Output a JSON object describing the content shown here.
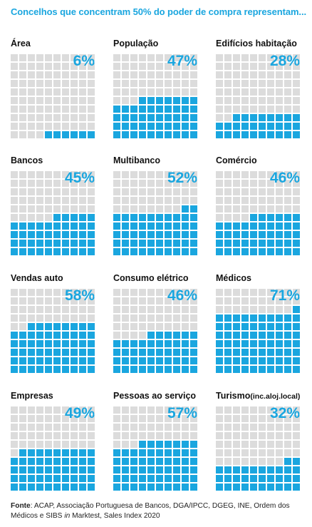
{
  "title": "Concelhos que concentram 50% do poder de compra representam...",
  "colors": {
    "fill": "#1aa6df",
    "empty": "#dcdcdc",
    "accent": "#1aa6df"
  },
  "chart_data": {
    "type": "waffle",
    "grid": "10x10",
    "unit": "%",
    "panels": [
      {
        "label": "Área",
        "label_small": "",
        "value": 6,
        "value_label": "6%"
      },
      {
        "label": "População",
        "label_small": "",
        "value": 47,
        "value_label": "47%"
      },
      {
        "label": "Edifícios habitação",
        "label_small": "",
        "value": 28,
        "value_label": "28%"
      },
      {
        "label": "Bancos",
        "label_small": "",
        "value": 45,
        "value_label": "45%"
      },
      {
        "label": "Multibanco",
        "label_small": "",
        "value": 52,
        "value_label": "52%"
      },
      {
        "label": "Comércio",
        "label_small": "",
        "value": 46,
        "value_label": "46%"
      },
      {
        "label": "Vendas auto",
        "label_small": "",
        "value": 58,
        "value_label": "58%"
      },
      {
        "label": "Consumo elétrico",
        "label_small": "",
        "value": 46,
        "value_label": "46%"
      },
      {
        "label": "Médicos",
        "label_small": "",
        "value": 71,
        "value_label": "71%"
      },
      {
        "label": "Empresas",
        "label_small": "",
        "value": 49,
        "value_label": "49%"
      },
      {
        "label": "Pessoas ao serviço",
        "label_small": "",
        "value": 57,
        "value_label": "57%"
      },
      {
        "label": "Turismo",
        "label_small": "(inc.aloj.local)",
        "value": 32,
        "value_label": "32%"
      }
    ]
  },
  "source": {
    "prefix": "Fonte",
    "text_a": ":  ACAP, Associação Portuguesa de Bancos, DGA/IPCC,  DGEG, INE, Ordem dos Médicos e SIBS ",
    "italic": "in",
    "text_b": " Marktest, Sales Index 2020"
  }
}
